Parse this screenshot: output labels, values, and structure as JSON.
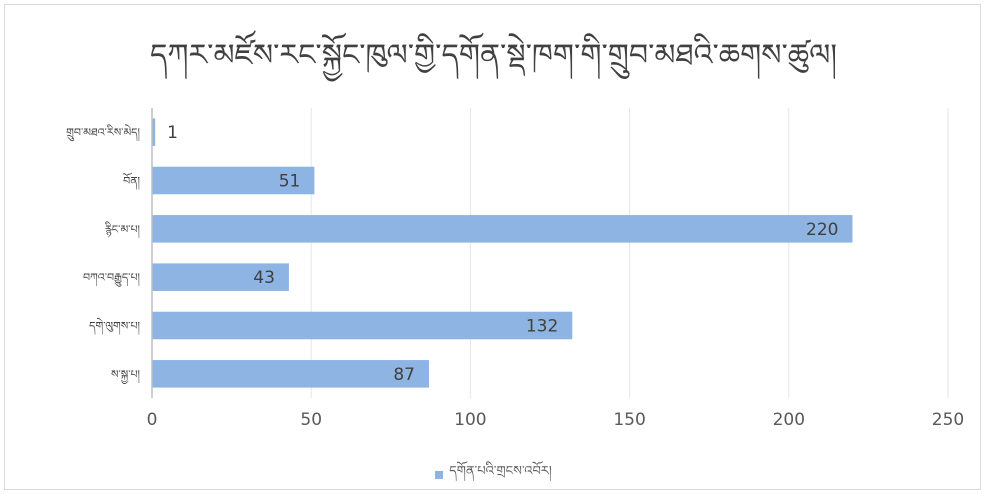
{
  "chart_data": {
    "type": "bar",
    "orientation": "horizontal",
    "title": "དཀར་མཛོས་རང་སྐྱོང་ཁུལ་གྱི་དགོན་སྡེ་ཁག་གི་གྲུབ་མཐའི་ཆགས་ཚུལ།",
    "categories": [
      "གྲུབ་མཐའ་རིས་མེད།",
      "བོན།",
      "རྙིང་མ་པ།",
      "བཀའ་བརྒྱུད་པ།",
      "དགེ་ལུགས་པ།",
      "ས་སྐྱ་པ།"
    ],
    "series": [
      {
        "name": "དགོན་པའི་གྲངས་འབོར།",
        "values": [
          1,
          51,
          220,
          43,
          132,
          87
        ]
      }
    ],
    "xlim": [
      0,
      250
    ],
    "xticks": [
      "0",
      "50",
      "100",
      "150",
      "200",
      "250"
    ],
    "grid": true,
    "legend_position": "bottom",
    "bar_color": "#8db4e2"
  }
}
